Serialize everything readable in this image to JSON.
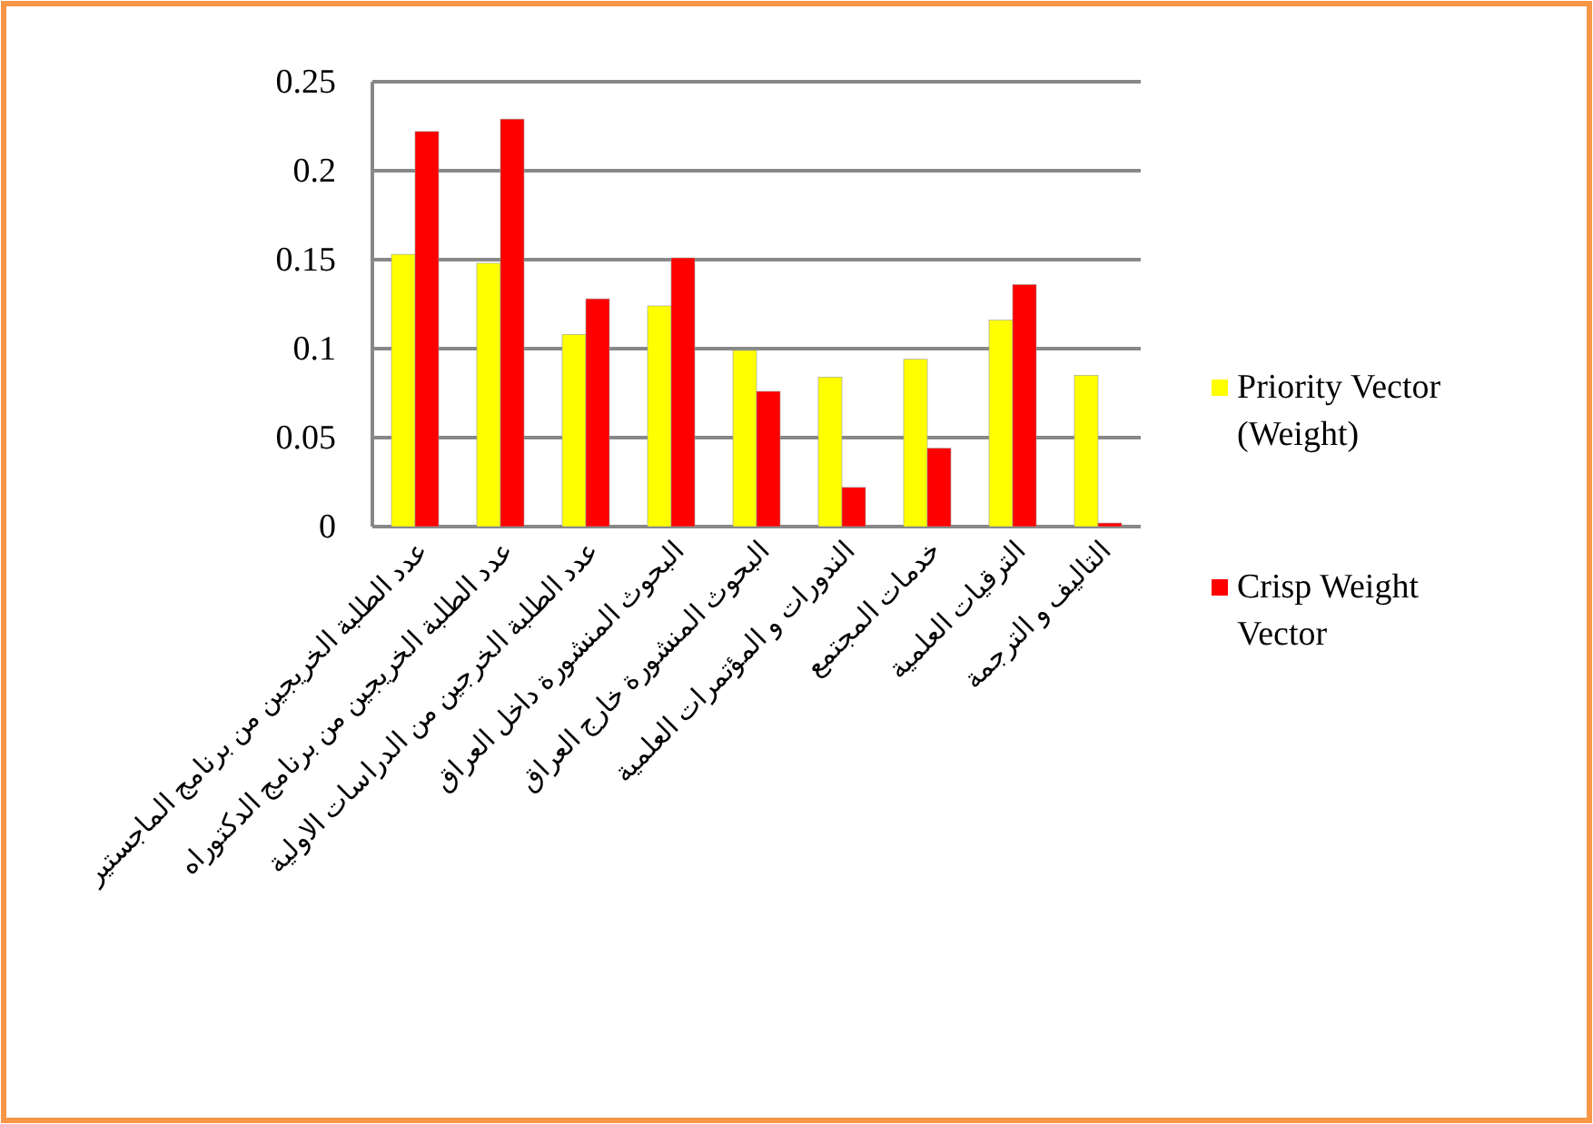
{
  "chart_data": {
    "type": "bar",
    "categories": [
      "عدد الطلبة الخريجين من برنامج الماجستير",
      "عدد الطلبة الخريجين من برنامج الدكتوراه",
      "عدد الطلبة الخرجين من الدراسات الاولية",
      "البحوث المنشورة داخل العراق",
      "البحوث المنشورة خارج العراق",
      "الندورات و المؤتمرات العلمية",
      "خدمات المجتمع",
      "الترقيات العلمية",
      "التاليف و الترجمة"
    ],
    "series": [
      {
        "name": "Priority Vector (Weight)",
        "color": "#ffff00",
        "values": [
          0.153,
          0.148,
          0.108,
          0.124,
          0.099,
          0.084,
          0.094,
          0.116,
          0.085
        ]
      },
      {
        "name": "Crisp Weight Vector",
        "color": "#ff0000",
        "values": [
          0.222,
          0.229,
          0.128,
          0.151,
          0.076,
          0.022,
          0.044,
          0.136,
          0.002
        ]
      }
    ],
    "ylim": [
      0,
      0.25
    ],
    "yticks": [
      0,
      0.05,
      {
        "value": 0.1,
        "label": "0.1"
      },
      0.15,
      {
        "value": 0.2,
        "label": "0.2"
      },
      0.25
    ],
    "grid": "y",
    "legend": "right"
  }
}
